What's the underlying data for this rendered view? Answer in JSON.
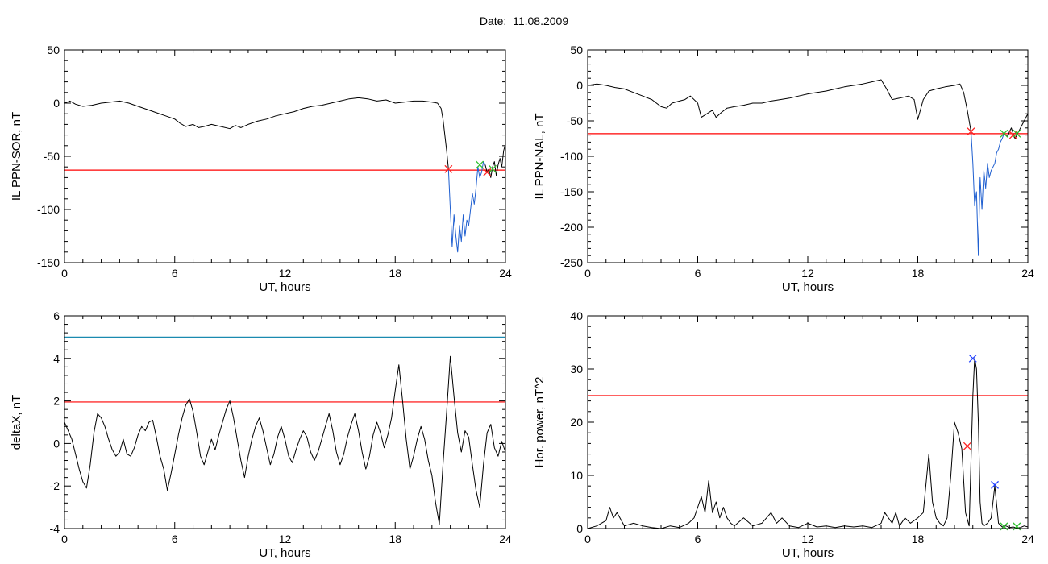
{
  "page": {
    "title": "Date:  11.08.2009"
  },
  "colors": {
    "trace": "#000000",
    "threshold": "#ff0000",
    "alt_threshold": "#1a8ab0",
    "highlight": "#1f5fd0",
    "marker_red": "#ff2020",
    "marker_green": "#30c030",
    "marker_blue": "#2040ff"
  },
  "chart_data": [
    {
      "id": "sor",
      "type": "line",
      "xlabel": "UT, hours",
      "ylabel": "IL PPN-SOR, nT",
      "xlim": [
        0,
        24
      ],
      "ylim": [
        -150,
        50
      ],
      "xticks": [
        0,
        6,
        12,
        18,
        24
      ],
      "yticks": [
        -150,
        -100,
        -50,
        0,
        50
      ],
      "series": [
        {
          "x": [
            0,
            0.3,
            0.6,
            1,
            1.5,
            2,
            2.5,
            3,
            3.5,
            4,
            4.5,
            5,
            5.5,
            6,
            6.3,
            6.6,
            7,
            7.3,
            7.6,
            8,
            8.5,
            9,
            9.3,
            9.6,
            10,
            10.5,
            11,
            11.5,
            12,
            12.5,
            13,
            13.5,
            14,
            14.5,
            15,
            15.5,
            16,
            16.5,
            17,
            17.5,
            18,
            18.5,
            19,
            19.5,
            20,
            20.3,
            20.5,
            20.6,
            20.7,
            20.8,
            20.9
          ],
          "y": [
            0,
            2,
            -1,
            -3,
            -2,
            0,
            1,
            2,
            0,
            -3,
            -6,
            -9,
            -12,
            -15,
            -19,
            -22,
            -20,
            -23,
            -22,
            -20,
            -22,
            -24,
            -21,
            -23,
            -20,
            -17,
            -15,
            -12,
            -10,
            -8,
            -5,
            -3,
            -2,
            0,
            2,
            4,
            5,
            4,
            2,
            3,
            0,
            1,
            2,
            2,
            1,
            0,
            -5,
            -15,
            -30,
            -45,
            -62
          ]
        },
        {
          "x": [
            20.9,
            21.0,
            21.1,
            21.2,
            21.3,
            21.4,
            21.5,
            21.6,
            21.7,
            21.8,
            21.9,
            22.0,
            22.1,
            22.2,
            22.3,
            22.4,
            22.5,
            22.6,
            22.7,
            22.8,
            22.9
          ],
          "y": [
            -62,
            -100,
            -135,
            -105,
            -125,
            -140,
            -115,
            -130,
            -105,
            -125,
            -110,
            -115,
            -100,
            -85,
            -95,
            -80,
            -60,
            -70,
            -65,
            -55,
            -58
          ]
        },
        {
          "x": [
            22.9,
            23.0,
            23.1,
            23.2,
            23.3,
            23.4,
            23.5,
            23.6,
            23.7,
            23.8,
            23.9,
            24.0
          ],
          "y": [
            -58,
            -65,
            -62,
            -70,
            -60,
            -55,
            -68,
            -58,
            -52,
            -60,
            -45,
            -38
          ]
        }
      ],
      "threshold": -63,
      "markers": [
        {
          "x": 20.9,
          "y": -62,
          "color": "red"
        },
        {
          "x": 22.6,
          "y": -58,
          "color": "green"
        },
        {
          "x": 23.0,
          "y": -65,
          "color": "red"
        },
        {
          "x": 23.3,
          "y": -62,
          "color": "green"
        }
      ]
    },
    {
      "id": "nal",
      "type": "line",
      "xlabel": "UT, hours",
      "ylabel": "IL PPN-NAL, nT",
      "xlim": [
        0,
        24
      ],
      "ylim": [
        -250,
        50
      ],
      "xticks": [
        0,
        6,
        12,
        18,
        24
      ],
      "yticks": [
        -250,
        -200,
        -150,
        -100,
        -50,
        0,
        50
      ],
      "series": [
        {
          "x": [
            0,
            0.5,
            1,
            1.5,
            2,
            2.5,
            3,
            3.5,
            4,
            4.3,
            4.6,
            5,
            5.3,
            5.6,
            6,
            6.2,
            6.5,
            6.8,
            7,
            7.3,
            7.6,
            8,
            8.5,
            9,
            9.5,
            10,
            10.5,
            11,
            11.5,
            12,
            12.5,
            13,
            13.5,
            14,
            14.5,
            15,
            15.5,
            16,
            16.3,
            16.6,
            17,
            17.5,
            17.8,
            18,
            18.3,
            18.6,
            19,
            19.5,
            20,
            20.3,
            20.5,
            20.7,
            20.9
          ],
          "y": [
            0,
            2,
            0,
            -3,
            -5,
            -10,
            -15,
            -20,
            -30,
            -32,
            -25,
            -22,
            -20,
            -15,
            -25,
            -45,
            -40,
            -35,
            -45,
            -38,
            -32,
            -30,
            -28,
            -25,
            -25,
            -22,
            -20,
            -18,
            -15,
            -12,
            -10,
            -8,
            -5,
            -2,
            0,
            2,
            5,
            8,
            -5,
            -20,
            -18,
            -15,
            -20,
            -48,
            -20,
            -8,
            -5,
            -2,
            0,
            2,
            -10,
            -35,
            -65
          ]
        },
        {
          "x": [
            20.9,
            21.0,
            21.1,
            21.2,
            21.3,
            21.35,
            21.4,
            21.5,
            21.6,
            21.7,
            21.8,
            21.9,
            22.0,
            22.1,
            22.2,
            22.3,
            22.4,
            22.5,
            22.6,
            22.7
          ],
          "y": [
            -65,
            -110,
            -170,
            -150,
            -240,
            -180,
            -130,
            -175,
            -120,
            -145,
            -110,
            -130,
            -120,
            -115,
            -110,
            -95,
            -90,
            -80,
            -75,
            -68
          ]
        },
        {
          "x": [
            22.7,
            22.8,
            22.9,
            23.0,
            23.1,
            23.2,
            23.3,
            23.4,
            23.5,
            23.6,
            23.7,
            23.8,
            23.9,
            24.0
          ],
          "y": [
            -68,
            -70,
            -72,
            -65,
            -60,
            -68,
            -75,
            -70,
            -65,
            -60,
            -55,
            -50,
            -45,
            -40
          ]
        }
      ],
      "threshold": -68,
      "markers": [
        {
          "x": 20.9,
          "y": -65,
          "color": "red"
        },
        {
          "x": 22.7,
          "y": -68,
          "color": "green"
        },
        {
          "x": 23.2,
          "y": -70,
          "color": "red"
        },
        {
          "x": 23.4,
          "y": -68,
          "color": "green"
        }
      ]
    },
    {
      "id": "deltax",
      "type": "line",
      "xlabel": "UT, hours",
      "ylabel": "deltaX, nT",
      "xlim": [
        0,
        24
      ],
      "ylim": [
        -4,
        6
      ],
      "xticks": [
        0,
        6,
        12,
        18,
        24
      ],
      "yticks": [
        -4,
        -2,
        0,
        2,
        4,
        6
      ],
      "series": [
        {
          "x": [
            0,
            0.2,
            0.4,
            0.6,
            0.8,
            1.0,
            1.2,
            1.4,
            1.6,
            1.8,
            2.0,
            2.2,
            2.4,
            2.6,
            2.8,
            3.0,
            3.2,
            3.4,
            3.6,
            3.8,
            4.0,
            4.2,
            4.4,
            4.6,
            4.8,
            5.0,
            5.2,
            5.4,
            5.6,
            5.8,
            6.0,
            6.2,
            6.4,
            6.6,
            6.8,
            7.0,
            7.2,
            7.4,
            7.6,
            7.8,
            8.0,
            8.2,
            8.4,
            8.6,
            8.8,
            9.0,
            9.2,
            9.4,
            9.6,
            9.8,
            10.0,
            10.2,
            10.4,
            10.6,
            10.8,
            11.0,
            11.2,
            11.4,
            11.6,
            11.8,
            12.0,
            12.2,
            12.4,
            12.6,
            12.8,
            13.0,
            13.2,
            13.4,
            13.6,
            13.8,
            14.0,
            14.2,
            14.4,
            14.6,
            14.8,
            15.0,
            15.2,
            15.4,
            15.6,
            15.8,
            16.0,
            16.2,
            16.4,
            16.6,
            16.8,
            17.0,
            17.2,
            17.4,
            17.6,
            17.8,
            18.0,
            18.2,
            18.4,
            18.6,
            18.8,
            19.0,
            19.2,
            19.4,
            19.6,
            19.8,
            20.0,
            20.2,
            20.4,
            20.6,
            20.8,
            21.0,
            21.2,
            21.4,
            21.6,
            21.8,
            22.0,
            22.2,
            22.4,
            22.6,
            22.8,
            23.0,
            23.2,
            23.4,
            23.6,
            23.8,
            24.0
          ],
          "y": [
            1.0,
            0.6,
            0.2,
            -0.5,
            -1.2,
            -1.8,
            -2.1,
            -1.0,
            0.5,
            1.4,
            1.2,
            0.8,
            0.2,
            -0.3,
            -0.6,
            -0.4,
            0.2,
            -0.5,
            -0.6,
            -0.2,
            0.4,
            0.8,
            0.6,
            1.0,
            1.1,
            0.3,
            -0.6,
            -1.2,
            -2.2,
            -1.4,
            -0.5,
            0.4,
            1.2,
            1.8,
            2.1,
            1.5,
            0.5,
            -0.6,
            -1.0,
            -0.4,
            0.2,
            -0.3,
            0.4,
            1.0,
            1.6,
            2.0,
            1.2,
            0.2,
            -0.8,
            -1.6,
            -0.6,
            0.2,
            0.8,
            1.2,
            0.6,
            -0.2,
            -1.0,
            -0.5,
            0.3,
            0.8,
            0.2,
            -0.6,
            -0.9,
            -0.3,
            0.2,
            0.6,
            0.3,
            -0.4,
            -0.8,
            -0.4,
            0.2,
            0.8,
            1.4,
            0.6,
            -0.4,
            -1.0,
            -0.5,
            0.3,
            0.9,
            1.4,
            0.6,
            -0.4,
            -1.2,
            -0.6,
            0.4,
            1.0,
            0.5,
            -0.2,
            0.4,
            1.2,
            2.5,
            3.7,
            2.0,
            0.2,
            -1.2,
            -0.6,
            0.2,
            0.8,
            0.2,
            -0.8,
            -1.5,
            -2.8,
            -3.8,
            -1.0,
            1.5,
            4.1,
            2.2,
            0.5,
            -0.4,
            0.6,
            0.3,
            -1.0,
            -2.2,
            -3.0,
            -1.0,
            0.5,
            0.9,
            -0.2,
            -0.6,
            0.1,
            -0.4
          ]
        }
      ],
      "threshold": 1.95,
      "alt_threshold": 5.0,
      "markers": []
    },
    {
      "id": "power",
      "type": "line",
      "xlabel": "UT, hours",
      "ylabel": "Hor. power, nT^2",
      "xlim": [
        0,
        24
      ],
      "ylim": [
        0,
        40
      ],
      "xticks": [
        0,
        6,
        12,
        18,
        24
      ],
      "yticks": [
        0,
        10,
        20,
        30,
        40
      ],
      "series": [
        {
          "x": [
            0,
            0.5,
            1.0,
            1.2,
            1.4,
            1.6,
            2.0,
            2.5,
            3.0,
            3.5,
            4.0,
            4.5,
            5.0,
            5.5,
            5.8,
            6.0,
            6.2,
            6.4,
            6.6,
            6.8,
            7.0,
            7.2,
            7.4,
            7.6,
            7.8,
            8.0,
            8.5,
            9.0,
            9.5,
            10.0,
            10.3,
            10.6,
            11.0,
            11.5,
            12.0,
            12.5,
            13.0,
            13.5,
            14.0,
            14.5,
            15.0,
            15.5,
            16.0,
            16.2,
            16.4,
            16.6,
            16.8,
            17.0,
            17.3,
            17.6,
            18.0,
            18.3,
            18.6,
            18.8,
            19.0,
            19.2,
            19.4,
            19.6,
            19.8,
            20.0,
            20.2,
            20.4,
            20.6,
            20.8,
            21.0,
            21.1,
            21.2,
            21.3,
            21.4,
            21.5,
            21.6,
            21.8,
            22.0,
            22.2,
            22.4,
            22.6,
            22.8,
            23.0,
            23.2,
            23.4,
            23.6,
            23.8,
            24.0
          ],
          "y": [
            0,
            0.5,
            1.5,
            4,
            2,
            3,
            0.5,
            1,
            0.5,
            0.2,
            0,
            0.5,
            0.2,
            1,
            2,
            4,
            6,
            3,
            9,
            3,
            5,
            2,
            4,
            2,
            1,
            0.5,
            2,
            0.5,
            1,
            3,
            1,
            2,
            0.5,
            0.2,
            1,
            0.3,
            0.5,
            0.2,
            0.5,
            0.3,
            0.5,
            0.2,
            1,
            3,
            2,
            1,
            3,
            0.5,
            2,
            1,
            2,
            3,
            14,
            5,
            2,
            1,
            0.5,
            2,
            10,
            20,
            18,
            15,
            3,
            0.5,
            25,
            32,
            30,
            20,
            5,
            1,
            0.5,
            1,
            2,
            8,
            1,
            0.3,
            0.5,
            0.2,
            0.3,
            0.1,
            0.2,
            0.5,
            0.3
          ]
        }
      ],
      "threshold": 25,
      "markers": [
        {
          "x": 20.7,
          "y": 15.5,
          "color": "red"
        },
        {
          "x": 21.0,
          "y": 32,
          "color": "blue"
        },
        {
          "x": 22.2,
          "y": 8.2,
          "color": "blue"
        },
        {
          "x": 22.7,
          "y": 0.4,
          "color": "green"
        },
        {
          "x": 23.4,
          "y": 0.4,
          "color": "green"
        }
      ]
    }
  ]
}
